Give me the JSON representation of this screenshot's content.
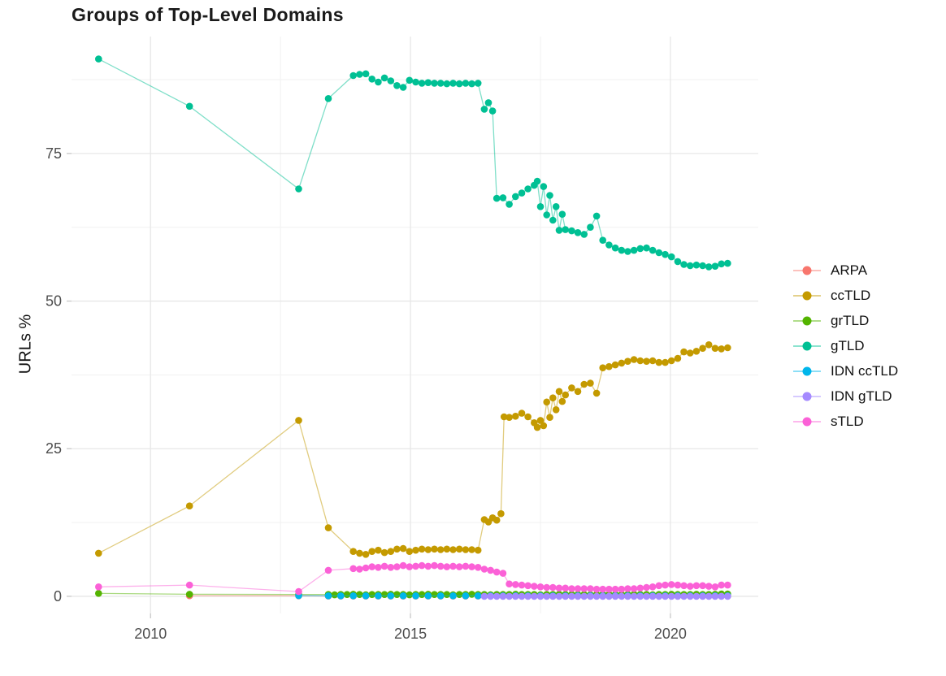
{
  "title": "Groups of Top-Level Domains",
  "y_axis_title": "URLs %",
  "chart_data": {
    "type": "line",
    "title": "Groups of Top-Level Domains",
    "xlabel": "",
    "ylabel": "URLs %",
    "xlim": [
      2008.48,
      2021.69
    ],
    "ylim": [
      -2.9,
      94.8
    ],
    "x_ticks": [
      2010,
      2015,
      2020
    ],
    "y_ticks": [
      0,
      25,
      50,
      75
    ],
    "x_minor_gridlines": [
      2012.5,
      2017.5
    ],
    "y_minor_gridlines": [
      12.5,
      37.5,
      62.5,
      87.5
    ],
    "grid": true,
    "legend_position": "right",
    "point_radius": 4.3,
    "line_opacity": 0.5,
    "grid_color_major": "#e7e7e7",
    "grid_color_minor": "#f1f1f1",
    "tick_color": "#c8c8c8",
    "axis_text_color": "#4d4d4d",
    "series": [
      {
        "name": "ARPA",
        "color": "#F8766D",
        "x": [
          2010.75,
          2012.85,
          2013.42,
          2013.66,
          2013.9,
          2014.14,
          2014.38,
          2014.62,
          2014.86,
          2015.1,
          2015.34,
          2015.58,
          2015.82,
          2016.06,
          2016.3,
          2016.54,
          2016.78,
          2017.02,
          2017.26,
          2017.5,
          2017.74,
          2017.98,
          2018.22,
          2018.46,
          2018.7,
          2018.94,
          2019.18,
          2019.42,
          2019.66,
          2019.9,
          2020.14,
          2020.38,
          2020.62,
          2020.86,
          2021.1
        ],
        "y": [
          0.1,
          0.08,
          0.05,
          0.05,
          0.05,
          0.05,
          0.05,
          0.05,
          0.05,
          0.05,
          0.05,
          0.05,
          0.05,
          0.05,
          0.05,
          0.05,
          0.05,
          0.05,
          0.05,
          0.05,
          0.05,
          0.05,
          0.05,
          0.05,
          0.05,
          0.05,
          0.05,
          0.05,
          0.05,
          0.05,
          0.05,
          0.05,
          0.05,
          0.05,
          0.05
        ]
      },
      {
        "name": "ccTLD",
        "color": "#C49A00",
        "x": [
          2009.0,
          2010.75,
          2012.85,
          2013.42,
          2013.9,
          2014.02,
          2014.14,
          2014.26,
          2014.38,
          2014.5,
          2014.62,
          2014.74,
          2014.86,
          2014.98,
          2015.1,
          2015.22,
          2015.34,
          2015.46,
          2015.58,
          2015.7,
          2015.82,
          2015.94,
          2016.06,
          2016.18,
          2016.3,
          2016.42,
          2016.5,
          2016.58,
          2016.66,
          2016.74,
          2016.8,
          2016.9,
          2017.02,
          2017.14,
          2017.26,
          2017.38,
          2017.44,
          2017.5,
          2017.56,
          2017.62,
          2017.68,
          2017.74,
          2017.8,
          2017.86,
          2017.92,
          2017.98,
          2018.1,
          2018.22,
          2018.34,
          2018.46,
          2018.58,
          2018.7,
          2018.82,
          2018.94,
          2019.06,
          2019.18,
          2019.3,
          2019.42,
          2019.54,
          2019.66,
          2019.78,
          2019.9,
          2020.02,
          2020.14,
          2020.26,
          2020.38,
          2020.5,
          2020.62,
          2020.74,
          2020.86,
          2020.98,
          2021.1
        ],
        "y": [
          7.3,
          15.3,
          29.8,
          11.6,
          7.6,
          7.3,
          7.1,
          7.6,
          7.8,
          7.4,
          7.6,
          8.0,
          8.1,
          7.6,
          7.8,
          8.0,
          7.9,
          8.0,
          7.9,
          8.0,
          7.9,
          8.0,
          7.9,
          7.9,
          7.8,
          13.0,
          12.6,
          13.3,
          12.9,
          14.0,
          30.4,
          30.3,
          30.5,
          31.0,
          30.4,
          29.4,
          28.6,
          29.8,
          28.9,
          32.9,
          30.3,
          33.6,
          31.6,
          34.7,
          33.0,
          34.1,
          35.3,
          34.7,
          35.9,
          36.1,
          34.4,
          38.7,
          38.9,
          39.2,
          39.5,
          39.8,
          40.1,
          39.9,
          39.8,
          39.9,
          39.6,
          39.6,
          39.9,
          40.3,
          41.4,
          41.2,
          41.5,
          42.0,
          42.6,
          42.0,
          41.9,
          42.1
        ]
      },
      {
        "name": "grTLD",
        "color": "#53B400",
        "x": [
          2009.0,
          2010.75,
          2012.85,
          2013.42,
          2013.54,
          2013.66,
          2013.78,
          2013.9,
          2014.02,
          2014.14,
          2014.26,
          2014.38,
          2014.5,
          2014.62,
          2014.74,
          2014.86,
          2014.98,
          2015.1,
          2015.22,
          2015.34,
          2015.46,
          2015.58,
          2015.7,
          2015.82,
          2015.94,
          2016.06,
          2016.18,
          2016.3,
          2016.42,
          2016.54,
          2016.66,
          2016.78,
          2016.9,
          2017.02,
          2017.14,
          2017.26,
          2017.38,
          2017.5,
          2017.62,
          2017.74,
          2017.86,
          2017.98,
          2018.1,
          2018.22,
          2018.34,
          2018.46,
          2018.58,
          2018.7,
          2018.82,
          2018.94,
          2019.06,
          2019.18,
          2019.3,
          2019.42,
          2019.54,
          2019.66,
          2019.78,
          2019.9,
          2020.02,
          2020.14,
          2020.26,
          2020.38,
          2020.5,
          2020.62,
          2020.74,
          2020.86,
          2020.98,
          2021.1
        ],
        "y": [
          0.5,
          0.35,
          0.3,
          0.3,
          0.25,
          0.3,
          0.3,
          0.35,
          0.3,
          0.25,
          0.3,
          0.3,
          0.3,
          0.35,
          0.3,
          0.3,
          0.25,
          0.3,
          0.3,
          0.35,
          0.3,
          0.3,
          0.3,
          0.25,
          0.3,
          0.3,
          0.35,
          0.3,
          0.3,
          0.25,
          0.3,
          0.3,
          0.3,
          0.35,
          0.3,
          0.3,
          0.3,
          0.25,
          0.3,
          0.3,
          0.35,
          0.3,
          0.3,
          0.3,
          0.3,
          0.25,
          0.3,
          0.35,
          0.3,
          0.3,
          0.3,
          0.3,
          0.35,
          0.3,
          0.3,
          0.25,
          0.3,
          0.3,
          0.35,
          0.3,
          0.3,
          0.3,
          0.35,
          0.3,
          0.3,
          0.35,
          0.4,
          0.4
        ]
      },
      {
        "name": "gTLD",
        "color": "#00C094",
        "x": [
          2009.0,
          2010.75,
          2012.85,
          2013.42,
          2013.9,
          2014.02,
          2014.14,
          2014.26,
          2014.38,
          2014.5,
          2014.62,
          2014.74,
          2014.86,
          2014.98,
          2015.1,
          2015.22,
          2015.34,
          2015.46,
          2015.58,
          2015.7,
          2015.82,
          2015.94,
          2016.06,
          2016.18,
          2016.3,
          2016.42,
          2016.5,
          2016.58,
          2016.66,
          2016.78,
          2016.9,
          2017.02,
          2017.14,
          2017.26,
          2017.38,
          2017.44,
          2017.5,
          2017.56,
          2017.62,
          2017.68,
          2017.74,
          2017.8,
          2017.86,
          2017.92,
          2017.98,
          2018.1,
          2018.22,
          2018.34,
          2018.46,
          2018.58,
          2018.7,
          2018.82,
          2018.94,
          2019.06,
          2019.18,
          2019.3,
          2019.42,
          2019.54,
          2019.66,
          2019.78,
          2019.9,
          2020.02,
          2020.14,
          2020.26,
          2020.38,
          2020.5,
          2020.62,
          2020.74,
          2020.86,
          2020.98,
          2021.1
        ],
        "y": [
          91.0,
          83.0,
          69.0,
          84.3,
          88.2,
          88.4,
          88.5,
          87.6,
          87.1,
          87.8,
          87.3,
          86.5,
          86.2,
          87.4,
          87.1,
          86.9,
          87.0,
          86.9,
          86.9,
          86.8,
          86.9,
          86.8,
          86.9,
          86.8,
          86.9,
          82.5,
          83.6,
          82.2,
          67.4,
          67.5,
          66.4,
          67.7,
          68.3,
          69.0,
          69.6,
          70.3,
          66.0,
          69.4,
          64.6,
          67.9,
          63.7,
          66.0,
          62.0,
          64.7,
          62.1,
          61.9,
          61.6,
          61.3,
          62.5,
          64.4,
          60.3,
          59.5,
          59.0,
          58.6,
          58.4,
          58.6,
          58.9,
          59.0,
          58.6,
          58.2,
          57.9,
          57.5,
          56.7,
          56.2,
          56.0,
          56.1,
          56.0,
          55.8,
          55.9,
          56.3,
          56.4
        ]
      },
      {
        "name": "IDN ccTLD",
        "color": "#00B6EB",
        "x": [
          2012.85,
          2013.42,
          2013.66,
          2013.9,
          2014.14,
          2014.38,
          2014.62,
          2014.86,
          2015.1,
          2015.34,
          2015.58,
          2015.82,
          2016.06,
          2016.3,
          2016.54,
          2016.78,
          2017.02,
          2017.26,
          2017.5,
          2017.74,
          2017.98,
          2018.22,
          2018.46,
          2018.7,
          2018.94,
          2019.18,
          2019.42,
          2019.66,
          2019.9,
          2020.14,
          2020.38,
          2020.62,
          2020.86,
          2021.1
        ],
        "y": [
          0.12,
          0.08,
          0.08,
          0.08,
          0.08,
          0.08,
          0.08,
          0.08,
          0.08,
          0.08,
          0.08,
          0.08,
          0.08,
          0.08,
          0.08,
          0.08,
          0.08,
          0.08,
          0.08,
          0.08,
          0.08,
          0.08,
          0.08,
          0.08,
          0.08,
          0.08,
          0.08,
          0.08,
          0.08,
          0.08,
          0.08,
          0.08,
          0.08,
          0.08
        ]
      },
      {
        "name": "IDN gTLD",
        "color": "#A58AFF",
        "x": [
          2016.42,
          2016.54,
          2016.66,
          2016.78,
          2016.9,
          2017.02,
          2017.14,
          2017.26,
          2017.38,
          2017.5,
          2017.62,
          2017.74,
          2017.86,
          2017.98,
          2018.1,
          2018.22,
          2018.34,
          2018.46,
          2018.58,
          2018.7,
          2018.82,
          2018.94,
          2019.06,
          2019.18,
          2019.3,
          2019.42,
          2019.54,
          2019.66,
          2019.78,
          2019.9,
          2020.02,
          2020.14,
          2020.26,
          2020.38,
          2020.5,
          2020.62,
          2020.74,
          2020.86,
          2020.98,
          2021.1
        ],
        "y": [
          0.0,
          0.0,
          0.0,
          0.0,
          0.0,
          0.0,
          0.0,
          0.0,
          0.0,
          0.0,
          0.0,
          0.0,
          0.0,
          0.0,
          0.0,
          0.0,
          0.0,
          0.0,
          0.0,
          0.0,
          0.0,
          0.0,
          0.0,
          0.0,
          0.0,
          0.0,
          0.0,
          0.0,
          0.0,
          0.0,
          0.0,
          0.0,
          0.0,
          0.0,
          0.0,
          0.0,
          0.0,
          0.0,
          0.0,
          0.0
        ]
      },
      {
        "name": "sTLD",
        "color": "#FB61D7",
        "x": [
          2009.0,
          2010.75,
          2012.85,
          2013.42,
          2013.9,
          2014.02,
          2014.14,
          2014.26,
          2014.38,
          2014.5,
          2014.62,
          2014.74,
          2014.86,
          2014.98,
          2015.1,
          2015.22,
          2015.34,
          2015.46,
          2015.58,
          2015.7,
          2015.82,
          2015.94,
          2016.06,
          2016.18,
          2016.3,
          2016.42,
          2016.54,
          2016.66,
          2016.78,
          2016.9,
          2017.02,
          2017.14,
          2017.26,
          2017.38,
          2017.5,
          2017.62,
          2017.74,
          2017.86,
          2017.98,
          2018.1,
          2018.22,
          2018.34,
          2018.46,
          2018.58,
          2018.7,
          2018.82,
          2018.94,
          2019.06,
          2019.18,
          2019.3,
          2019.42,
          2019.54,
          2019.66,
          2019.78,
          2019.9,
          2020.02,
          2020.14,
          2020.26,
          2020.38,
          2020.5,
          2020.62,
          2020.74,
          2020.86,
          2020.98,
          2021.1
        ],
        "y": [
          1.6,
          1.9,
          0.8,
          4.4,
          4.7,
          4.6,
          4.8,
          5.0,
          4.9,
          5.1,
          4.9,
          5.0,
          5.2,
          5.0,
          5.1,
          5.2,
          5.1,
          5.2,
          5.1,
          5.0,
          5.1,
          5.0,
          5.1,
          5.0,
          4.9,
          4.6,
          4.4,
          4.1,
          3.9,
          2.1,
          2.0,
          1.9,
          1.8,
          1.7,
          1.6,
          1.5,
          1.5,
          1.4,
          1.4,
          1.3,
          1.3,
          1.3,
          1.3,
          1.2,
          1.2,
          1.2,
          1.2,
          1.2,
          1.3,
          1.3,
          1.4,
          1.5,
          1.6,
          1.8,
          1.9,
          2.0,
          1.9,
          1.8,
          1.7,
          1.8,
          1.8,
          1.7,
          1.6,
          1.9,
          1.9
        ]
      }
    ]
  }
}
